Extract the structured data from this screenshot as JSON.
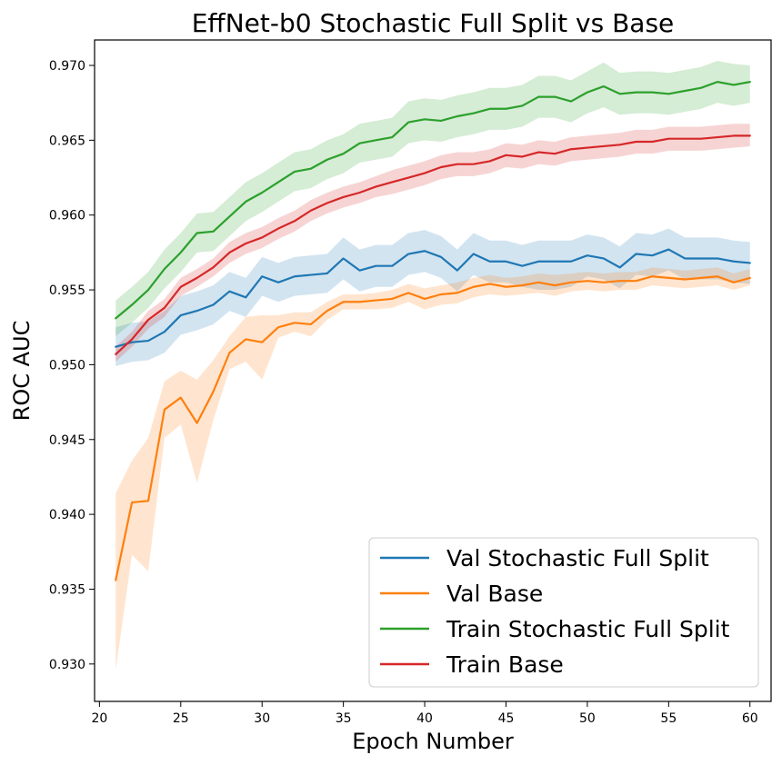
{
  "chart_data": {
    "type": "line",
    "title": "EffNet-b0 Stochastic Full Split vs Base",
    "xlabel": "Epoch Number",
    "ylabel": "ROC AUC",
    "xlim": [
      19.7,
      61.3
    ],
    "ylim": [
      0.9275,
      0.9717
    ],
    "xticks": [
      20,
      25,
      30,
      35,
      40,
      45,
      50,
      55,
      60
    ],
    "yticks": [
      0.93,
      0.935,
      0.94,
      0.945,
      0.95,
      0.955,
      0.96,
      0.965,
      0.97
    ],
    "grid": false,
    "legend_position": "lower-right",
    "x": [
      21,
      22,
      23,
      24,
      25,
      26,
      27,
      28,
      29,
      30,
      31,
      32,
      33,
      34,
      35,
      36,
      37,
      38,
      39,
      40,
      41,
      42,
      43,
      44,
      45,
      46,
      47,
      48,
      49,
      50,
      51,
      52,
      53,
      54,
      55,
      56,
      57,
      58,
      59,
      60
    ],
    "series": [
      {
        "name": "Val Stochastic Full Split",
        "color": "#1f77b4",
        "values": [
          0.9512,
          0.9515,
          0.9516,
          0.9522,
          0.9533,
          0.9536,
          0.954,
          0.9549,
          0.9545,
          0.9559,
          0.9555,
          0.9559,
          0.956,
          0.9561,
          0.9571,
          0.9563,
          0.9566,
          0.9566,
          0.9574,
          0.9576,
          0.9572,
          0.9563,
          0.9574,
          0.9569,
          0.9569,
          0.9566,
          0.9569,
          0.9569,
          0.9569,
          0.9573,
          0.9571,
          0.9565,
          0.9574,
          0.9573,
          0.9577,
          0.9571,
          0.9571,
          0.9571,
          0.9569,
          0.9568
        ],
        "lower": [
          0.9499,
          0.9502,
          0.9503,
          0.9508,
          0.952,
          0.9523,
          0.9527,
          0.9536,
          0.9532,
          0.9546,
          0.9542,
          0.9546,
          0.9547,
          0.9548,
          0.9557,
          0.9549,
          0.9552,
          0.9552,
          0.956,
          0.9562,
          0.9558,
          0.9549,
          0.956,
          0.9555,
          0.9555,
          0.9552,
          0.955,
          0.955,
          0.9552,
          0.9559,
          0.9557,
          0.9551,
          0.956,
          0.9559,
          0.9563,
          0.9557,
          0.9557,
          0.9557,
          0.9555,
          0.9554
        ],
        "upper": [
          0.9525,
          0.9528,
          0.9529,
          0.9536,
          0.9546,
          0.9549,
          0.9553,
          0.9562,
          0.9558,
          0.9572,
          0.9568,
          0.9572,
          0.9573,
          0.9574,
          0.9585,
          0.9577,
          0.958,
          0.958,
          0.9588,
          0.959,
          0.9586,
          0.9577,
          0.9588,
          0.9583,
          0.9583,
          0.958,
          0.9583,
          0.9583,
          0.9583,
          0.9587,
          0.9585,
          0.9579,
          0.9588,
          0.9587,
          0.9591,
          0.9585,
          0.9585,
          0.9585,
          0.9583,
          0.9582
        ]
      },
      {
        "name": "Val Base",
        "color": "#ff7f0e",
        "values": [
          0.9356,
          0.9408,
          0.9409,
          0.947,
          0.9478,
          0.9461,
          0.9482,
          0.9508,
          0.9517,
          0.9515,
          0.9525,
          0.9528,
          0.9527,
          0.9536,
          0.9542,
          0.9542,
          0.9543,
          0.9544,
          0.9548,
          0.9544,
          0.9547,
          0.9548,
          0.9552,
          0.9554,
          0.9552,
          0.9553,
          0.9555,
          0.9553,
          0.9555,
          0.9556,
          0.9555,
          0.9556,
          0.9556,
          0.9559,
          0.9558,
          0.9557,
          0.9558,
          0.9559,
          0.9555,
          0.9558
        ],
        "lower": [
          0.9296,
          0.9373,
          0.9362,
          0.9451,
          0.946,
          0.9421,
          0.9463,
          0.9497,
          0.9502,
          0.949,
          0.9518,
          0.9522,
          0.9519,
          0.953,
          0.9537,
          0.9537,
          0.9537,
          0.9538,
          0.9542,
          0.9537,
          0.954,
          0.9541,
          0.9545,
          0.9547,
          0.9546,
          0.9547,
          0.9548,
          0.9546,
          0.9549,
          0.955,
          0.9549,
          0.955,
          0.955,
          0.9553,
          0.9552,
          0.9551,
          0.9552,
          0.9553,
          0.955,
          0.9553
        ],
        "upper": [
          0.9414,
          0.9436,
          0.9451,
          0.9489,
          0.9496,
          0.949,
          0.9503,
          0.9519,
          0.9532,
          0.9533,
          0.9533,
          0.9535,
          0.9535,
          0.9542,
          0.9547,
          0.9547,
          0.9548,
          0.955,
          0.9554,
          0.9551,
          0.9553,
          0.9555,
          0.9558,
          0.956,
          0.9558,
          0.9559,
          0.9561,
          0.956,
          0.9561,
          0.9562,
          0.9561,
          0.9562,
          0.9562,
          0.9565,
          0.9564,
          0.9563,
          0.9564,
          0.9565,
          0.9561,
          0.9564
        ]
      },
      {
        "name": "Train Stochastic Full Split",
        "color": "#2ca02c",
        "values": [
          0.9531,
          0.954,
          0.955,
          0.9564,
          0.9575,
          0.9588,
          0.9589,
          0.9599,
          0.9609,
          0.9615,
          0.9622,
          0.9629,
          0.9631,
          0.9637,
          0.9641,
          0.9648,
          0.965,
          0.9652,
          0.9662,
          0.9664,
          0.9663,
          0.9666,
          0.9668,
          0.9671,
          0.9671,
          0.9673,
          0.9679,
          0.9679,
          0.9676,
          0.9682,
          0.9686,
          0.9681,
          0.9682,
          0.9682,
          0.9681,
          0.9683,
          0.9685,
          0.9689,
          0.9687,
          0.9689
        ],
        "lower": [
          0.9519,
          0.9528,
          0.9538,
          0.9551,
          0.9562,
          0.9575,
          0.9576,
          0.9586,
          0.9596,
          0.9602,
          0.9609,
          0.9616,
          0.9618,
          0.9624,
          0.9628,
          0.9635,
          0.9637,
          0.9639,
          0.9648,
          0.965,
          0.9649,
          0.9652,
          0.9654,
          0.9657,
          0.9657,
          0.9659,
          0.9665,
          0.9665,
          0.9662,
          0.9668,
          0.9672,
          0.9667,
          0.9668,
          0.9668,
          0.9667,
          0.9669,
          0.9671,
          0.9675,
          0.9673,
          0.9675
        ],
        "upper": [
          0.9543,
          0.9552,
          0.9562,
          0.9577,
          0.9588,
          0.9601,
          0.9602,
          0.9612,
          0.9622,
          0.9628,
          0.9635,
          0.9642,
          0.9644,
          0.965,
          0.9654,
          0.9661,
          0.9663,
          0.9665,
          0.9676,
          0.9678,
          0.9677,
          0.968,
          0.9682,
          0.9685,
          0.9685,
          0.9687,
          0.9693,
          0.9693,
          0.969,
          0.9696,
          0.9702,
          0.9695,
          0.9696,
          0.9696,
          0.9695,
          0.9697,
          0.9699,
          0.9703,
          0.9701,
          0.97
        ]
      },
      {
        "name": "Train Base",
        "color": "#d62728",
        "values": [
          0.9507,
          0.9517,
          0.953,
          0.9538,
          0.9552,
          0.9558,
          0.9565,
          0.9575,
          0.9581,
          0.9585,
          0.9591,
          0.9596,
          0.9603,
          0.9608,
          0.9612,
          0.9615,
          0.9619,
          0.9622,
          0.9625,
          0.9628,
          0.9632,
          0.9634,
          0.9634,
          0.9636,
          0.964,
          0.9639,
          0.9642,
          0.9641,
          0.9644,
          0.9645,
          0.9646,
          0.9647,
          0.9649,
          0.9649,
          0.9651,
          0.9651,
          0.9651,
          0.9652,
          0.9653,
          0.9653
        ],
        "lower": [
          0.9502,
          0.9512,
          0.9524,
          0.9532,
          0.9546,
          0.9552,
          0.9559,
          0.9568,
          0.9574,
          0.9578,
          0.9584,
          0.9589,
          0.9596,
          0.9601,
          0.9605,
          0.9608,
          0.9612,
          0.9614,
          0.9617,
          0.962,
          0.9624,
          0.9626,
          0.9626,
          0.9628,
          0.9632,
          0.9631,
          0.9634,
          0.9633,
          0.9636,
          0.9637,
          0.9638,
          0.9639,
          0.9641,
          0.9641,
          0.9643,
          0.9643,
          0.9643,
          0.9644,
          0.9645,
          0.9646
        ],
        "upper": [
          0.9512,
          0.9522,
          0.9536,
          0.9544,
          0.9558,
          0.9564,
          0.9571,
          0.9582,
          0.9588,
          0.9592,
          0.9598,
          0.9603,
          0.961,
          0.9615,
          0.9619,
          0.9622,
          0.9626,
          0.963,
          0.9633,
          0.9636,
          0.964,
          0.9642,
          0.9642,
          0.9644,
          0.9648,
          0.9647,
          0.965,
          0.9649,
          0.9652,
          0.9653,
          0.9654,
          0.9655,
          0.9657,
          0.9657,
          0.9659,
          0.9659,
          0.9659,
          0.966,
          0.9661,
          0.9661
        ]
      }
    ]
  }
}
